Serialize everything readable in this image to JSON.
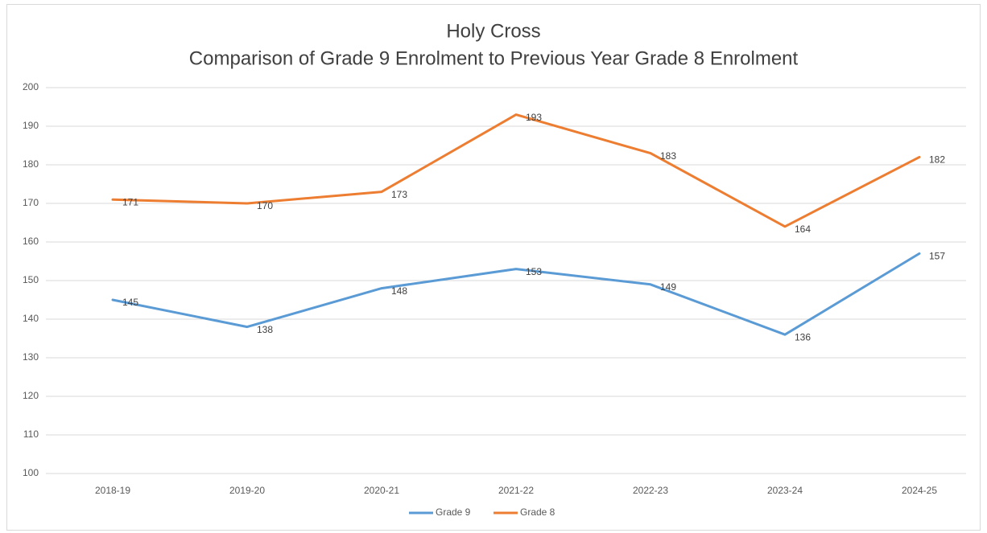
{
  "chart_data": {
    "type": "line",
    "title": "Holy Cross",
    "subtitle": "Comparison of Grade 9 Enrolment to Previous Year Grade 8 Enrolment",
    "categories": [
      "2018-19",
      "2019-20",
      "2020-21",
      "2021-22",
      "2022-23",
      "2023-24",
      "2024-25"
    ],
    "series": [
      {
        "name": "Grade 9",
        "color": "#5b9bd5",
        "values": [
          145,
          138,
          148,
          153,
          149,
          136,
          157
        ]
      },
      {
        "name": "Grade 8",
        "color": "#ed7d31",
        "values": [
          171,
          170,
          173,
          193,
          183,
          164,
          182
        ]
      }
    ],
    "ylim": [
      100,
      200
    ],
    "yticks": [
      100,
      110,
      120,
      130,
      140,
      150,
      160,
      170,
      180,
      190,
      200
    ],
    "grid": true,
    "legend": "bottom"
  }
}
